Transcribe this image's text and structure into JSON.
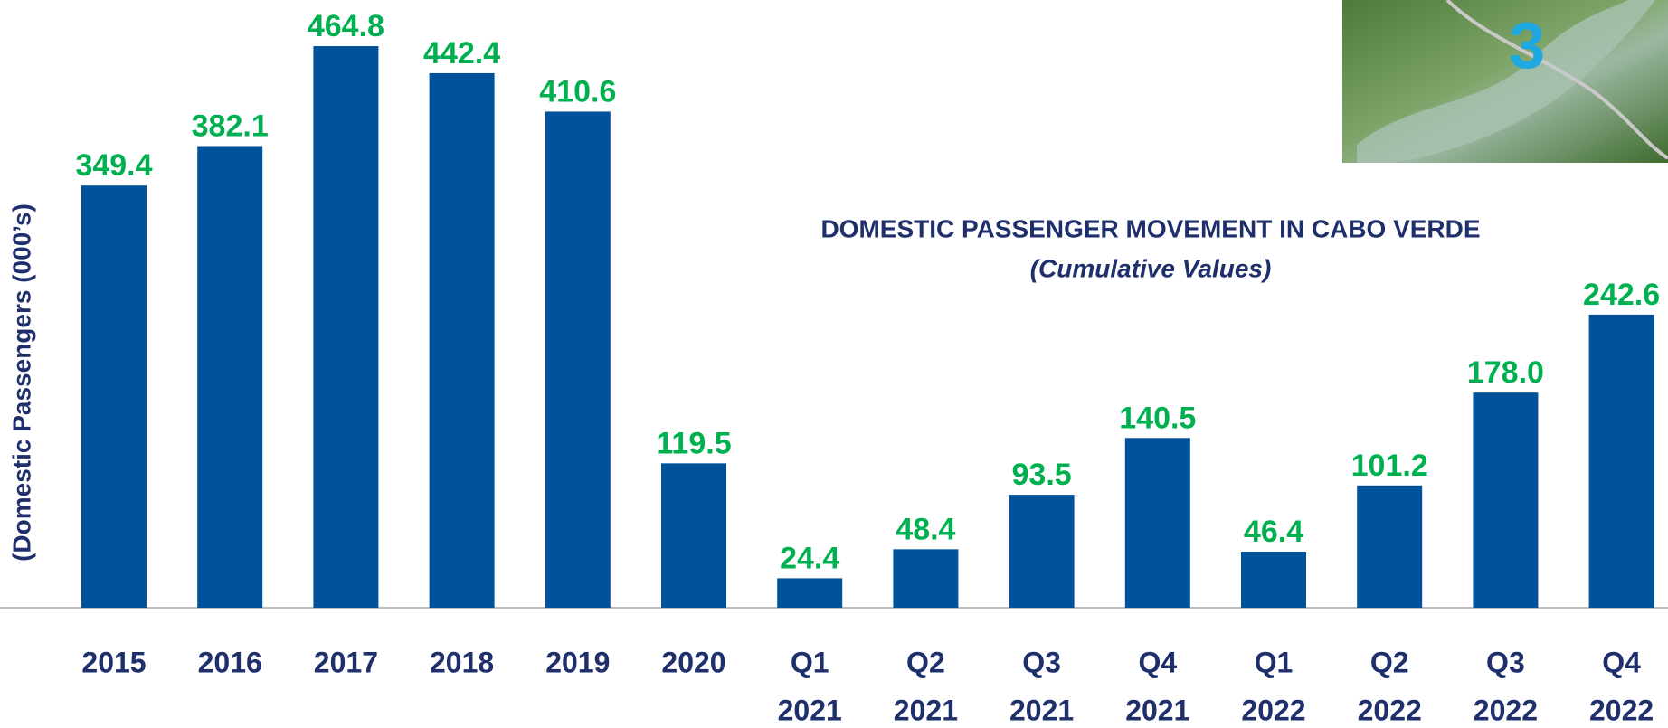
{
  "chart_data": {
    "type": "bar",
    "title": "DOMESTIC PASSENGER MOVEMENT IN CABO VERDE",
    "subtitle": "(Cumulative Values)",
    "y_axis_label": "(Domestic Passengers (000’s)",
    "image_badge": "3",
    "categories": [
      [
        "2015"
      ],
      [
        "2016"
      ],
      [
        "2017"
      ],
      [
        "2018"
      ],
      [
        "2019"
      ],
      [
        "2020"
      ],
      [
        "Q1",
        "2021"
      ],
      [
        "Q2",
        "2021"
      ],
      [
        "Q3",
        "2021"
      ],
      [
        "Q4",
        "2021"
      ],
      [
        "Q1",
        "2022"
      ],
      [
        "Q2",
        "2022"
      ],
      [
        "Q3",
        "2022"
      ],
      [
        "Q4",
        "2022"
      ]
    ],
    "values": [
      349.4,
      382.1,
      464.8,
      442.4,
      410.6,
      119.5,
      24.4,
      48.4,
      93.5,
      140.5,
      46.4,
      101.2,
      178.0,
      242.6
    ],
    "value_labels": [
      "349.4",
      "382.1",
      "464.8",
      "442.4",
      "410.6",
      "119.5",
      "24.4",
      "48.4",
      "93.5",
      "140.5",
      "46.4",
      "101.2",
      "178.0",
      "242.6"
    ],
    "color": "#00539b",
    "label_color": "#00b050",
    "ylim": [
      0,
      500
    ]
  }
}
